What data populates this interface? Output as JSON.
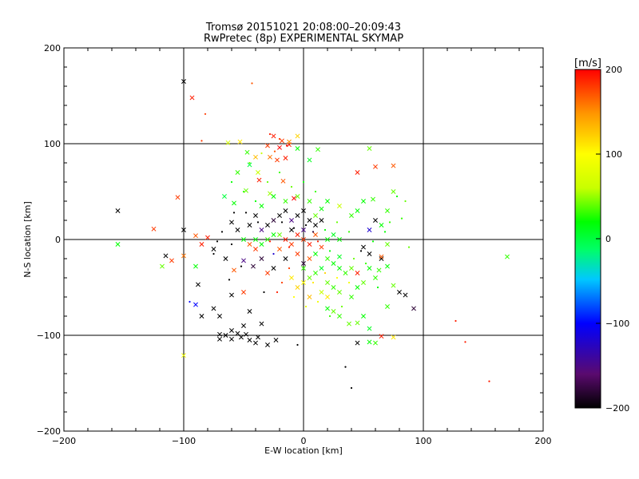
{
  "chart_data": {
    "type": "scatter",
    "title": "Tromsø 20151021 20:08:00–20:09:43",
    "subtitle": "RwPretec (8p) EXPERIMENTAL SKYMAP",
    "xlabel": "E-W location [km]",
    "ylabel": "N-S location [km]",
    "xlim": [
      -200,
      200
    ],
    "ylim": [
      -200,
      200
    ],
    "x_ticks": [
      -200,
      -100,
      0,
      100,
      200
    ],
    "y_ticks": [
      -200,
      -100,
      0,
      100,
      200
    ],
    "x_tick_labels": [
      "−200",
      "−100",
      "0",
      "100",
      "200"
    ],
    "y_tick_labels": [
      "−200",
      "−100",
      "0",
      "100",
      "200"
    ],
    "grid": true,
    "grid_lines_x": [
      -100,
      0,
      100
    ],
    "grid_lines_y": [
      -100,
      0,
      100
    ],
    "colorbar": {
      "label": "[m/s]",
      "range": [
        -200,
        200
      ],
      "ticks": [
        200,
        100,
        0,
        -100,
        -200
      ],
      "tick_labels": [
        "200",
        "100",
        "0",
        "−100",
        "−200"
      ],
      "colormap": [
        "#000000",
        "#5a0a6e",
        "#0000ff",
        "#00c8ff",
        "#00ff64",
        "#00ff00",
        "#c8ff00",
        "#ffff00",
        "#ff9600",
        "#ff0000"
      ]
    },
    "point_markers": [
      "x",
      "dot"
    ],
    "points": [
      [
        -100,
        165,
        -200,
        "x"
      ],
      [
        -93,
        148,
        190,
        "x"
      ],
      [
        -43,
        163,
        170,
        "dot"
      ],
      [
        -82,
        131,
        180,
        "dot"
      ],
      [
        -85,
        103,
        180,
        "dot"
      ],
      [
        -63,
        101,
        70,
        "x"
      ],
      [
        -53,
        102,
        110,
        "x"
      ],
      [
        -25,
        108,
        190,
        "x"
      ],
      [
        -18,
        103,
        180,
        "x"
      ],
      [
        -12,
        99,
        190,
        "x"
      ],
      [
        -30,
        98,
        180,
        "x"
      ],
      [
        -20,
        96,
        200,
        "x"
      ],
      [
        -28,
        86,
        160,
        "x"
      ],
      [
        -22,
        83,
        180,
        "x"
      ],
      [
        -15,
        85,
        190,
        "x"
      ],
      [
        -47,
        91,
        30,
        "x"
      ],
      [
        -40,
        86,
        130,
        "x"
      ],
      [
        -45,
        78,
        0,
        "x"
      ],
      [
        -38,
        70,
        60,
        "x"
      ],
      [
        -55,
        70,
        30,
        "x"
      ],
      [
        -12,
        102,
        150,
        "x"
      ],
      [
        -5,
        108,
        120,
        "x"
      ],
      [
        12,
        94,
        30,
        "x"
      ],
      [
        -5,
        95,
        20,
        "x"
      ],
      [
        5,
        83,
        10,
        "x"
      ],
      [
        55,
        95,
        40,
        "x"
      ],
      [
        60,
        76,
        180,
        "x"
      ],
      [
        75,
        77,
        170,
        "x"
      ],
      [
        45,
        70,
        190,
        "x"
      ],
      [
        -48,
        51,
        40,
        "x"
      ],
      [
        -37,
        62,
        190,
        "x"
      ],
      [
        -17,
        61,
        170,
        "x"
      ],
      [
        -28,
        48,
        50,
        "x"
      ],
      [
        -58,
        38,
        20,
        "x"
      ],
      [
        -66,
        45,
        0,
        "x"
      ],
      [
        -8,
        43,
        200,
        "x"
      ],
      [
        -105,
        44,
        180,
        "x"
      ],
      [
        -155,
        30,
        -200,
        "x"
      ],
      [
        -125,
        11,
        180,
        "x"
      ],
      [
        -100,
        10,
        -200,
        "x"
      ],
      [
        -90,
        4,
        170,
        "x"
      ],
      [
        -80,
        2,
        190,
        "x"
      ],
      [
        -155,
        -5,
        20,
        "x"
      ],
      [
        -115,
        -17,
        -200,
        "x"
      ],
      [
        -110,
        -22,
        180,
        "x"
      ],
      [
        -100,
        -17,
        160,
        "x"
      ],
      [
        -118,
        -28,
        40,
        "x"
      ],
      [
        -90,
        -28,
        20,
        "x"
      ],
      [
        -85,
        -5,
        190,
        "x"
      ],
      [
        -75,
        -10,
        -200,
        "x"
      ],
      [
        -88,
        -47,
        -200,
        "x"
      ],
      [
        -65,
        -20,
        -200,
        "x"
      ],
      [
        -58,
        -32,
        170,
        "x"
      ],
      [
        -50,
        -22,
        -150,
        "x"
      ],
      [
        -42,
        -28,
        -180,
        "x"
      ],
      [
        -30,
        -35,
        180,
        "x"
      ],
      [
        -50,
        -55,
        180,
        "x"
      ],
      [
        -60,
        -58,
        -200,
        "x"
      ],
      [
        -70,
        -80,
        -200,
        "x"
      ],
      [
        -90,
        -68,
        -100,
        "x"
      ],
      [
        -85,
        -80,
        -200,
        "x"
      ],
      [
        -75,
        -72,
        -200,
        "x"
      ],
      [
        -45,
        -75,
        -200,
        "x"
      ],
      [
        -50,
        -90,
        -200,
        "x"
      ],
      [
        -60,
        -95,
        -200,
        "x"
      ],
      [
        -65,
        -100,
        -200,
        "x"
      ],
      [
        -55,
        -98,
        -200,
        "x"
      ],
      [
        -48,
        -99,
        -200,
        "x"
      ],
      [
        -70,
        -99,
        -200,
        "x"
      ],
      [
        -70,
        -104,
        -200,
        "x"
      ],
      [
        -60,
        -104,
        -200,
        "x"
      ],
      [
        -52,
        -102,
        -200,
        "x"
      ],
      [
        -45,
        -105,
        -200,
        "x"
      ],
      [
        -40,
        -108,
        -200,
        "x"
      ],
      [
        -38,
        -102,
        -200,
        "x"
      ],
      [
        -35,
        -88,
        -200,
        "x"
      ],
      [
        -100,
        -121,
        90,
        "x"
      ],
      [
        -5,
        -110,
        -200,
        "dot"
      ],
      [
        35,
        -133,
        -200,
        "dot"
      ],
      [
        40,
        -155,
        -200,
        "dot"
      ],
      [
        -23,
        -105,
        -200,
        "x"
      ],
      [
        -30,
        -110,
        -200,
        "x"
      ],
      [
        45,
        -108,
        -200,
        "x"
      ],
      [
        55,
        -107,
        20,
        "x"
      ],
      [
        55,
        -93,
        10,
        "x"
      ],
      [
        65,
        -101,
        190,
        "x"
      ],
      [
        75,
        -102,
        110,
        "x"
      ],
      [
        60,
        -108,
        30,
        "x"
      ],
      [
        50,
        -80,
        20,
        "x"
      ],
      [
        45,
        -87,
        40,
        "x"
      ],
      [
        38,
        -88,
        40,
        "x"
      ],
      [
        30,
        -80,
        30,
        "x"
      ],
      [
        25,
        -75,
        40,
        "x"
      ],
      [
        20,
        -72,
        20,
        "x"
      ],
      [
        70,
        -70,
        30,
        "x"
      ],
      [
        80,
        -55,
        -200,
        "x"
      ],
      [
        85,
        -58,
        -200,
        "x"
      ],
      [
        92,
        -72,
        -180,
        "x"
      ],
      [
        75,
        -48,
        40,
        "x"
      ],
      [
        63,
        -32,
        30,
        "x"
      ],
      [
        70,
        -28,
        20,
        "x"
      ],
      [
        65,
        -20,
        -200,
        "x"
      ],
      [
        55,
        -15,
        -200,
        "x"
      ],
      [
        50,
        -8,
        -200,
        "x"
      ],
      [
        60,
        -40,
        30,
        "x"
      ],
      [
        45,
        -35,
        190,
        "x"
      ],
      [
        40,
        -30,
        40,
        "x"
      ],
      [
        30,
        -18,
        10,
        "x"
      ],
      [
        65,
        -18,
        170,
        "x"
      ],
      [
        70,
        -5,
        40,
        "x"
      ],
      [
        55,
        10,
        -120,
        "x"
      ],
      [
        60,
        20,
        -200,
        "x"
      ],
      [
        65,
        15,
        20,
        "x"
      ],
      [
        70,
        30,
        30,
        "x"
      ],
      [
        75,
        50,
        40,
        "x"
      ],
      [
        58,
        42,
        30,
        "x"
      ],
      [
        50,
        40,
        20,
        "x"
      ],
      [
        45,
        30,
        20,
        "x"
      ],
      [
        40,
        25,
        30,
        "x"
      ],
      [
        30,
        35,
        60,
        "x"
      ],
      [
        20,
        40,
        20,
        "x"
      ],
      [
        15,
        32,
        20,
        "x"
      ],
      [
        10,
        25,
        40,
        "x"
      ],
      [
        5,
        20,
        -200,
        "x"
      ],
      [
        0,
        30,
        -200,
        "x"
      ],
      [
        -5,
        25,
        -200,
        "x"
      ],
      [
        -10,
        20,
        -150,
        "x"
      ],
      [
        -15,
        30,
        -200,
        "x"
      ],
      [
        -20,
        25,
        -200,
        "x"
      ],
      [
        -25,
        20,
        -180,
        "x"
      ],
      [
        -30,
        15,
        -200,
        "x"
      ],
      [
        -35,
        10,
        -150,
        "x"
      ],
      [
        -40,
        25,
        -200,
        "x"
      ],
      [
        -45,
        15,
        -200,
        "x"
      ],
      [
        -55,
        10,
        -200,
        "x"
      ],
      [
        -60,
        18,
        -200,
        "x"
      ],
      [
        -35,
        35,
        20,
        "x"
      ],
      [
        -25,
        45,
        20,
        "x"
      ],
      [
        -15,
        40,
        30,
        "x"
      ],
      [
        -5,
        45,
        40,
        "x"
      ],
      [
        5,
        40,
        30,
        "x"
      ],
      [
        170,
        -18,
        30,
        "x"
      ],
      [
        127,
        -85,
        190,
        "dot"
      ],
      [
        135,
        -107,
        190,
        "dot"
      ],
      [
        155,
        -148,
        190,
        "dot"
      ],
      [
        -5,
        5,
        190,
        "x"
      ],
      [
        0,
        0,
        180,
        "x"
      ],
      [
        5,
        -5,
        190,
        "x"
      ],
      [
        -10,
        -5,
        180,
        "x"
      ],
      [
        10,
        5,
        170,
        "x"
      ],
      [
        -15,
        0,
        190,
        "x"
      ],
      [
        15,
        -8,
        180,
        "x"
      ],
      [
        -20,
        -10,
        170,
        "x"
      ],
      [
        20,
        0,
        20,
        "x"
      ],
      [
        25,
        5,
        10,
        "x"
      ],
      [
        30,
        0,
        20,
        "x"
      ],
      [
        -25,
        5,
        20,
        "x"
      ],
      [
        -30,
        0,
        30,
        "x"
      ],
      [
        -35,
        -5,
        20,
        "x"
      ],
      [
        -40,
        0,
        20,
        "x"
      ],
      [
        -20,
        5,
        40,
        "x"
      ],
      [
        -10,
        10,
        -200,
        "x"
      ],
      [
        0,
        10,
        -150,
        "x"
      ],
      [
        10,
        15,
        -200,
        "x"
      ],
      [
        15,
        20,
        -200,
        "x"
      ],
      [
        -5,
        -15,
        180,
        "x"
      ],
      [
        5,
        -20,
        170,
        "x"
      ],
      [
        -15,
        -20,
        -200,
        "x"
      ],
      [
        0,
        -25,
        -180,
        "x"
      ],
      [
        10,
        -15,
        20,
        "x"
      ],
      [
        20,
        -20,
        30,
        "x"
      ],
      [
        25,
        -25,
        20,
        "x"
      ],
      [
        15,
        -30,
        10,
        "x"
      ],
      [
        30,
        -30,
        20,
        "x"
      ],
      [
        35,
        -35,
        30,
        "x"
      ],
      [
        -25,
        -30,
        -200,
        "x"
      ],
      [
        -35,
        -20,
        -180,
        "x"
      ],
      [
        -40,
        -10,
        180,
        "x"
      ],
      [
        -45,
        -5,
        170,
        "x"
      ],
      [
        -50,
        0,
        20,
        "x"
      ],
      [
        0,
        -30,
        30,
        "x"
      ],
      [
        5,
        -40,
        40,
        "x"
      ],
      [
        10,
        -35,
        30,
        "x"
      ],
      [
        20,
        -45,
        40,
        "x"
      ],
      [
        25,
        -50,
        30,
        "x"
      ],
      [
        15,
        -55,
        60,
        "x"
      ],
      [
        30,
        -55,
        40,
        "x"
      ],
      [
        40,
        -60,
        30,
        "x"
      ],
      [
        45,
        -50,
        20,
        "x"
      ],
      [
        50,
        -45,
        40,
        "x"
      ],
      [
        55,
        -30,
        20,
        "x"
      ],
      [
        -10,
        -40,
        110,
        "x"
      ],
      [
        -5,
        -50,
        120,
        "x"
      ],
      [
        5,
        -60,
        130,
        "x"
      ],
      [
        0,
        -45,
        100,
        "x"
      ],
      [
        20,
        -60,
        110,
        "x"
      ],
      [
        -60,
        -5,
        -200,
        "dot"
      ],
      [
        -75,
        -15,
        -200,
        "dot"
      ],
      [
        -95,
        -65,
        -100,
        "dot"
      ],
      [
        -52,
        -28,
        -200,
        "dot"
      ],
      [
        -62,
        -42,
        -200,
        "dot"
      ],
      [
        -33,
        -55,
        -200,
        "dot"
      ],
      [
        -25,
        -15,
        -120,
        "dot"
      ],
      [
        -12,
        -8,
        190,
        "dot"
      ],
      [
        -8,
        12,
        -200,
        "dot"
      ],
      [
        2,
        15,
        -200,
        "dot"
      ],
      [
        8,
        8,
        -180,
        "dot"
      ],
      [
        12,
        -2,
        190,
        "dot"
      ],
      [
        18,
        10,
        20,
        "dot"
      ],
      [
        22,
        -12,
        20,
        "dot"
      ],
      [
        28,
        18,
        40,
        "dot"
      ],
      [
        -18,
        18,
        -200,
        "dot"
      ],
      [
        -28,
        -2,
        190,
        "dot"
      ],
      [
        -38,
        18,
        -200,
        "dot"
      ],
      [
        -48,
        28,
        -200,
        "dot"
      ],
      [
        -58,
        28,
        -200,
        "dot"
      ],
      [
        -68,
        8,
        -200,
        "dot"
      ],
      [
        -72,
        -2,
        -200,
        "dot"
      ],
      [
        38,
        8,
        30,
        "dot"
      ],
      [
        48,
        -12,
        -200,
        "dot"
      ],
      [
        58,
        -2,
        20,
        "dot"
      ],
      [
        68,
        8,
        20,
        "dot"
      ],
      [
        72,
        18,
        30,
        "dot"
      ],
      [
        82,
        22,
        30,
        "dot"
      ],
      [
        85,
        40,
        40,
        "dot"
      ],
      [
        78,
        45,
        20,
        "dot"
      ],
      [
        88,
        -8,
        40,
        "dot"
      ],
      [
        -8,
        -60,
        100,
        "dot"
      ],
      [
        2,
        -70,
        80,
        "dot"
      ],
      [
        12,
        -65,
        90,
        "dot"
      ],
      [
        22,
        -80,
        30,
        "dot"
      ],
      [
        32,
        -70,
        40,
        "dot"
      ],
      [
        -18,
        -45,
        180,
        "dot"
      ],
      [
        -22,
        -55,
        190,
        "dot"
      ],
      [
        -12,
        -30,
        180,
        "dot"
      ],
      [
        8,
        -45,
        110,
        "dot"
      ],
      [
        18,
        -35,
        120,
        "dot"
      ],
      [
        28,
        -40,
        100,
        "dot"
      ],
      [
        38,
        -45,
        90,
        "dot"
      ],
      [
        42,
        -20,
        40,
        "dot"
      ],
      [
        52,
        -25,
        30,
        "dot"
      ],
      [
        62,
        -50,
        20,
        "dot"
      ],
      [
        -30,
        60,
        40,
        "dot"
      ],
      [
        -20,
        70,
        30,
        "dot"
      ],
      [
        -10,
        55,
        40,
        "dot"
      ],
      [
        0,
        60,
        20,
        "dot"
      ],
      [
        10,
        50,
        30,
        "dot"
      ],
      [
        -40,
        40,
        20,
        "dot"
      ],
      [
        -50,
        50,
        30,
        "dot"
      ],
      [
        -60,
        60,
        20,
        "dot"
      ],
      [
        -45,
        80,
        40,
        "dot"
      ],
      [
        -35,
        90,
        60,
        "dot"
      ],
      [
        -20,
        105,
        180,
        "dot"
      ],
      [
        -28,
        110,
        190,
        "dot"
      ],
      [
        -14,
        98,
        200,
        "dot"
      ],
      [
        -24,
        92,
        170,
        "dot"
      ]
    ]
  }
}
